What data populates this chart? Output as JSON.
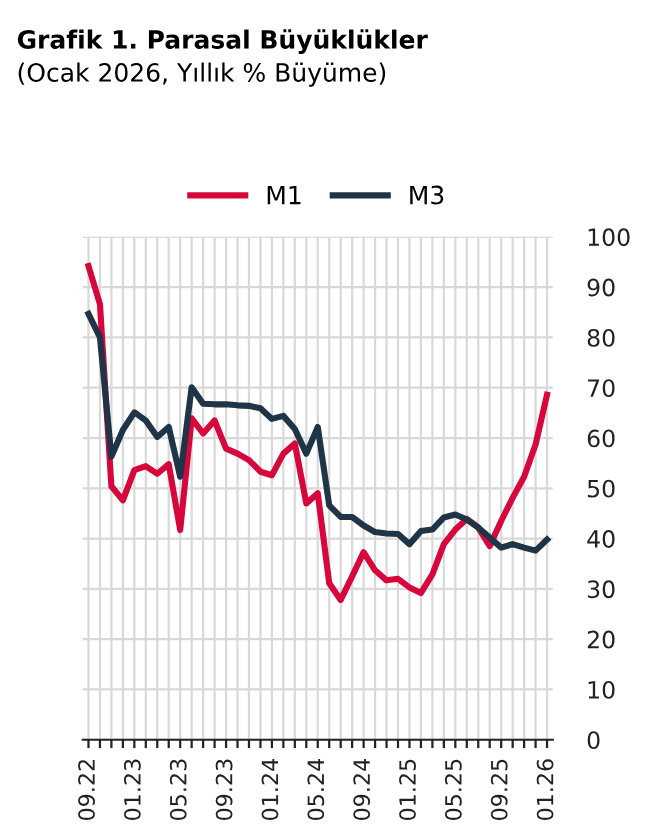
{
  "chart_data": {
    "type": "line",
    "title": "Grafik 1. Parasal Büyüklükler",
    "subtitle": "(Ocak 2026, Yıllık % Büyüme)",
    "categories": [
      "09.22",
      null,
      null,
      null,
      "01.23",
      null,
      null,
      null,
      "05.23",
      null,
      null,
      null,
      "09.23",
      null,
      null,
      null,
      "01.24",
      null,
      null,
      null,
      "05.24",
      null,
      null,
      null,
      "09.24",
      null,
      null,
      null,
      "01.25",
      null,
      null,
      null,
      "05.25",
      null,
      null,
      null,
      "09.25",
      null,
      null,
      null,
      "01.26"
    ],
    "series": [
      {
        "name": "M1",
        "color": "#d7063b",
        "values": [
          94.2,
          86.6,
          50.4,
          47.6,
          53.6,
          54.4,
          52.9,
          54.8,
          41.7,
          63.9,
          60.9,
          63.5,
          57.9,
          56.9,
          55.6,
          53.3,
          52.6,
          56.9,
          58.9,
          47.0,
          49.0,
          31.1,
          27.8,
          32.5,
          37.3,
          33.7,
          31.7,
          32.0,
          30.3,
          29.2,
          32.9,
          38.9,
          41.8,
          43.9,
          42.2,
          38.5,
          43.5,
          48.1,
          52.3,
          58.7,
          68.6
        ]
      },
      {
        "name": "M3",
        "color": "#1f3447",
        "values": [
          84.7,
          80.0,
          56.3,
          61.6,
          65.1,
          63.5,
          60.2,
          62.2,
          52.3,
          70.1,
          66.8,
          66.7,
          66.7,
          66.5,
          66.4,
          65.9,
          63.8,
          64.4,
          61.8,
          56.9,
          62.2,
          46.6,
          44.3,
          44.3,
          42.6,
          41.3,
          41.0,
          40.9,
          38.9,
          41.5,
          41.8,
          44.2,
          44.8,
          43.8,
          42.2,
          40.2,
          38.2,
          38.9,
          38.2,
          37.6,
          39.8
        ]
      }
    ],
    "ylim": [
      0,
      100
    ],
    "yticks": [
      0,
      10,
      20,
      30,
      40,
      50,
      60,
      70,
      80,
      90,
      100
    ],
    "grid": true,
    "legend": "top",
    "marker": "none",
    "line_style": "solid"
  }
}
